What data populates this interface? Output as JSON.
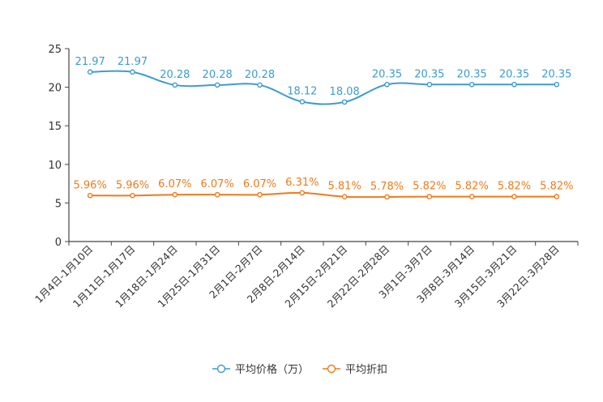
{
  "chart_data": {
    "type": "line",
    "title": "",
    "xlabel": "",
    "ylabel": "",
    "ylim": [
      0,
      25
    ],
    "yticks": [
      0,
      5,
      10,
      15,
      20,
      25
    ],
    "grid": false,
    "legend_position": "bottom-center",
    "categories": [
      "1月4日-1月10日",
      "1月11日-1月17日",
      "1月18日-1月24日",
      "1月25日-1月31日",
      "2月1日-2月7日",
      "2月8日-2月14日",
      "2月15日-2月21日",
      "2月22日-2月28日",
      "3月1日-3月7日",
      "3月8日-3月14日",
      "3月15日-3月21日",
      "3月22日-3月28日"
    ],
    "series": [
      {
        "name": "平均价格（万）",
        "color": "#3d9ccf",
        "values": [
          21.97,
          21.97,
          20.28,
          20.28,
          20.28,
          18.12,
          18.08,
          20.35,
          20.35,
          20.35,
          20.35,
          20.35
        ],
        "labels": [
          "21.97",
          "21.97",
          "20.28",
          "20.28",
          "20.28",
          "18.12",
          "18.08",
          "20.35",
          "20.35",
          "20.35",
          "20.35",
          "20.35"
        ]
      },
      {
        "name": "平均折扣",
        "color": "#f07a1a",
        "values": [
          5.96,
          5.96,
          6.07,
          6.07,
          6.07,
          6.31,
          5.81,
          5.78,
          5.82,
          5.82,
          5.82,
          5.82
        ],
        "labels": [
          "5.96%",
          "5.96%",
          "6.07%",
          "6.07%",
          "6.07%",
          "6.31%",
          "5.81%",
          "5.78%",
          "5.82%",
          "5.82%",
          "5.82%",
          "5.82%"
        ]
      }
    ]
  }
}
